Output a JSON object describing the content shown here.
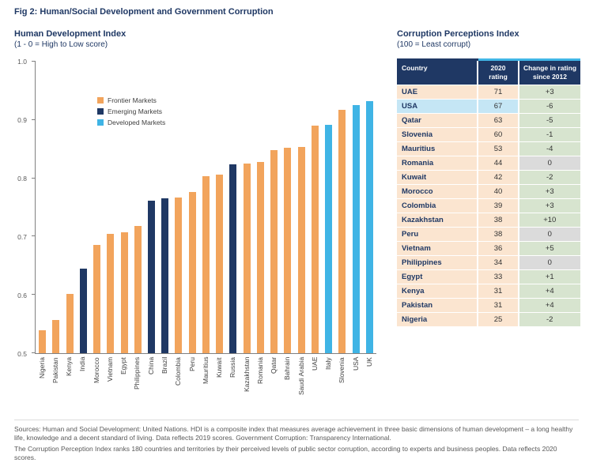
{
  "figure_title": "Fig 2: Human/Social Development and Government Corruption",
  "chart": {
    "title": "Human Development Index",
    "subtitle": "(1 - 0 = High to Low score)",
    "legend": [
      {
        "label": "Frontier Markets",
        "key": "frontier"
      },
      {
        "label": "Emerging Markets",
        "key": "emerging"
      },
      {
        "label": "Developed Markets",
        "key": "developed"
      }
    ]
  },
  "chart_data": {
    "type": "bar",
    "title": "Human Development Index",
    "xlabel": "",
    "ylabel": "",
    "ylim": [
      0.5,
      1.0
    ],
    "yticks": [
      0.5,
      0.6,
      0.7,
      0.8,
      0.9,
      1.0
    ],
    "grid": false,
    "legend_position": "upper-left",
    "categories": [
      "Nigeria",
      "Pakistan",
      "Kenya",
      "India",
      "Morocco",
      "Vietnam",
      "Egypt",
      "Philippines",
      "China",
      "Brazil",
      "Colombia",
      "Peru",
      "Mauritius",
      "Kuwait",
      "Russia",
      "Kazakhstan",
      "Romania",
      "Qatar",
      "Bahrain",
      "Saudi Arabia",
      "UAE",
      "Italy",
      "Slovenia",
      "USA",
      "UK"
    ],
    "values": [
      0.539,
      0.557,
      0.601,
      0.645,
      0.686,
      0.704,
      0.707,
      0.718,
      0.761,
      0.765,
      0.767,
      0.777,
      0.804,
      0.806,
      0.824,
      0.825,
      0.828,
      0.848,
      0.852,
      0.854,
      0.89,
      0.892,
      0.917,
      0.926,
      0.932
    ],
    "groups": [
      "frontier",
      "frontier",
      "frontier",
      "emerging",
      "frontier",
      "frontier",
      "frontier",
      "frontier",
      "emerging",
      "emerging",
      "frontier",
      "frontier",
      "frontier",
      "frontier",
      "emerging",
      "frontier",
      "frontier",
      "frontier",
      "frontier",
      "frontier",
      "frontier",
      "developed",
      "frontier",
      "developed",
      "developed"
    ]
  },
  "table": {
    "title": "Corruption Perceptions Index",
    "subtitle": "(100 = Least corrupt)",
    "headers": [
      "Country",
      "2020 rating",
      "Change in rating since 2012"
    ],
    "rows": [
      {
        "country": "UAE",
        "rating": "71",
        "change": "+3",
        "highlight": false
      },
      {
        "country": "USA",
        "rating": "67",
        "change": "-6",
        "highlight": true
      },
      {
        "country": "Qatar",
        "rating": "63",
        "change": "-5",
        "highlight": false
      },
      {
        "country": "Slovenia",
        "rating": "60",
        "change": "-1",
        "highlight": false
      },
      {
        "country": "Mauritius",
        "rating": "53",
        "change": "-4",
        "highlight": false
      },
      {
        "country": "Romania",
        "rating": "44",
        "change": "0",
        "highlight": false
      },
      {
        "country": "Kuwait",
        "rating": "42",
        "change": "-2",
        "highlight": false
      },
      {
        "country": "Morocco",
        "rating": "40",
        "change": "+3",
        "highlight": false
      },
      {
        "country": "Colombia",
        "rating": "39",
        "change": "+3",
        "highlight": false
      },
      {
        "country": "Kazakhstan",
        "rating": "38",
        "change": "+10",
        "highlight": false
      },
      {
        "country": "Peru",
        "rating": "38",
        "change": "0",
        "highlight": false
      },
      {
        "country": "Vietnam",
        "rating": "36",
        "change": "+5",
        "highlight": false
      },
      {
        "country": "Philippines",
        "rating": "34",
        "change": "0",
        "highlight": false
      },
      {
        "country": "Egypt",
        "rating": "33",
        "change": "+1",
        "highlight": false
      },
      {
        "country": "Kenya",
        "rating": "31",
        "change": "+4",
        "highlight": false
      },
      {
        "country": "Pakistan",
        "rating": "31",
        "change": "+4",
        "highlight": false
      },
      {
        "country": "Nigeria",
        "rating": "25",
        "change": "-2",
        "highlight": false
      }
    ]
  },
  "footnotes": {
    "line1": "Sources: Human and Social Development: United Nations. HDI is a composite index that measures average achievement in three basic dimensions of human development – a long healthy life, knowledge and a decent standard of living. Data reflects 2019 scores. Government Corruption: Transparency International.",
    "line2": "The Corruption Perception Index ranks 180 countries and territories by their perceived levels of public sector corruption, according to experts and business peoples. Data reflects 2020 scores."
  },
  "colors": {
    "title_navy": "#1F3864",
    "frontier": "#F2A45C",
    "emerging": "#1F3864",
    "developed": "#3FB4E5",
    "table_header_bg": "#1F3864",
    "table_header_accent": "#41B6E6",
    "row_peach": "#FBE5D0",
    "row_highlight_blue": "#C5E6F5",
    "change_nonzero_green": "#D7E4CF",
    "change_zero_gray": "#DBDBDB",
    "footnote_gray": "#595959"
  }
}
